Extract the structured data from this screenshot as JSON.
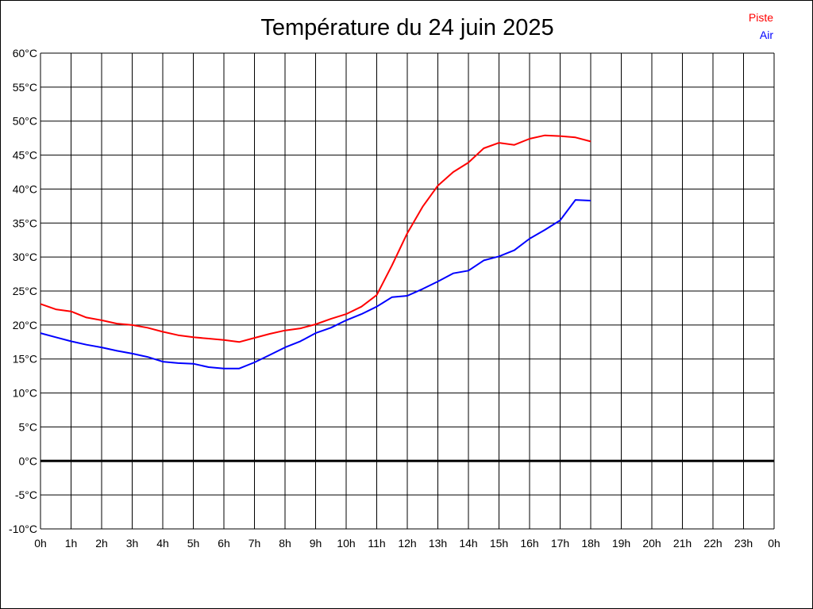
{
  "chart_data": {
    "type": "line",
    "title": "Température du 24 juin 2025",
    "xlabel": "",
    "ylabel": "",
    "xlim": [
      0,
      24
    ],
    "ylim": [
      -10,
      60
    ],
    "grid": true,
    "legend_position": "top-right",
    "x_tick_labels": [
      "0h",
      "1h",
      "2h",
      "3h",
      "4h",
      "5h",
      "6h",
      "7h",
      "8h",
      "9h",
      "10h",
      "11h",
      "12h",
      "13h",
      "14h",
      "15h",
      "16h",
      "17h",
      "18h",
      "19h",
      "20h",
      "21h",
      "22h",
      "23h",
      "0h"
    ],
    "y_tick_labels": [
      "60°C",
      "55°C",
      "50°C",
      "45°C",
      "40°C",
      "35°C",
      "30°C",
      "25°C",
      "20°C",
      "15°C",
      "10°C",
      "5°C",
      "0°C",
      "-5°C",
      "-10°C"
    ],
    "y_tick_values": [
      60,
      55,
      50,
      45,
      40,
      35,
      30,
      25,
      20,
      15,
      10,
      5,
      0,
      -5,
      -10
    ],
    "x": [
      0,
      0.5,
      1,
      1.5,
      2,
      2.5,
      3,
      3.5,
      4,
      4.5,
      5,
      5.5,
      6,
      6.5,
      7,
      7.5,
      8,
      8.5,
      9,
      9.5,
      10,
      10.5,
      11,
      11.5,
      12,
      12.5,
      13,
      13.5,
      14,
      14.5,
      15,
      15.5,
      16,
      16.5,
      17,
      17.5,
      18
    ],
    "series": [
      {
        "name": "Piste",
        "color": "#ff0000",
        "values": [
          23.1,
          22.3,
          22.0,
          21.1,
          20.7,
          20.2,
          20.0,
          19.6,
          19.0,
          18.5,
          18.2,
          18.0,
          17.8,
          17.5,
          18.1,
          18.7,
          19.2,
          19.5,
          20.1,
          20.9,
          21.6,
          22.7,
          24.4,
          28.8,
          33.5,
          37.4,
          40.5,
          42.5,
          43.9,
          46.0,
          46.8,
          46.5,
          47.4,
          47.9,
          47.8,
          47.6,
          47.0
        ]
      },
      {
        "name": "Air",
        "color": "#0000ff",
        "values": [
          18.8,
          18.2,
          17.6,
          17.1,
          16.7,
          16.2,
          15.8,
          15.3,
          14.6,
          14.4,
          14.3,
          13.8,
          13.6,
          13.6,
          14.5,
          15.6,
          16.7,
          17.6,
          18.8,
          19.6,
          20.7,
          21.6,
          22.7,
          24.1,
          24.3,
          25.3,
          26.4,
          27.6,
          28.0,
          29.5,
          30.1,
          31.0,
          32.7,
          34.0,
          35.4,
          38.4,
          38.3
        ]
      }
    ]
  }
}
